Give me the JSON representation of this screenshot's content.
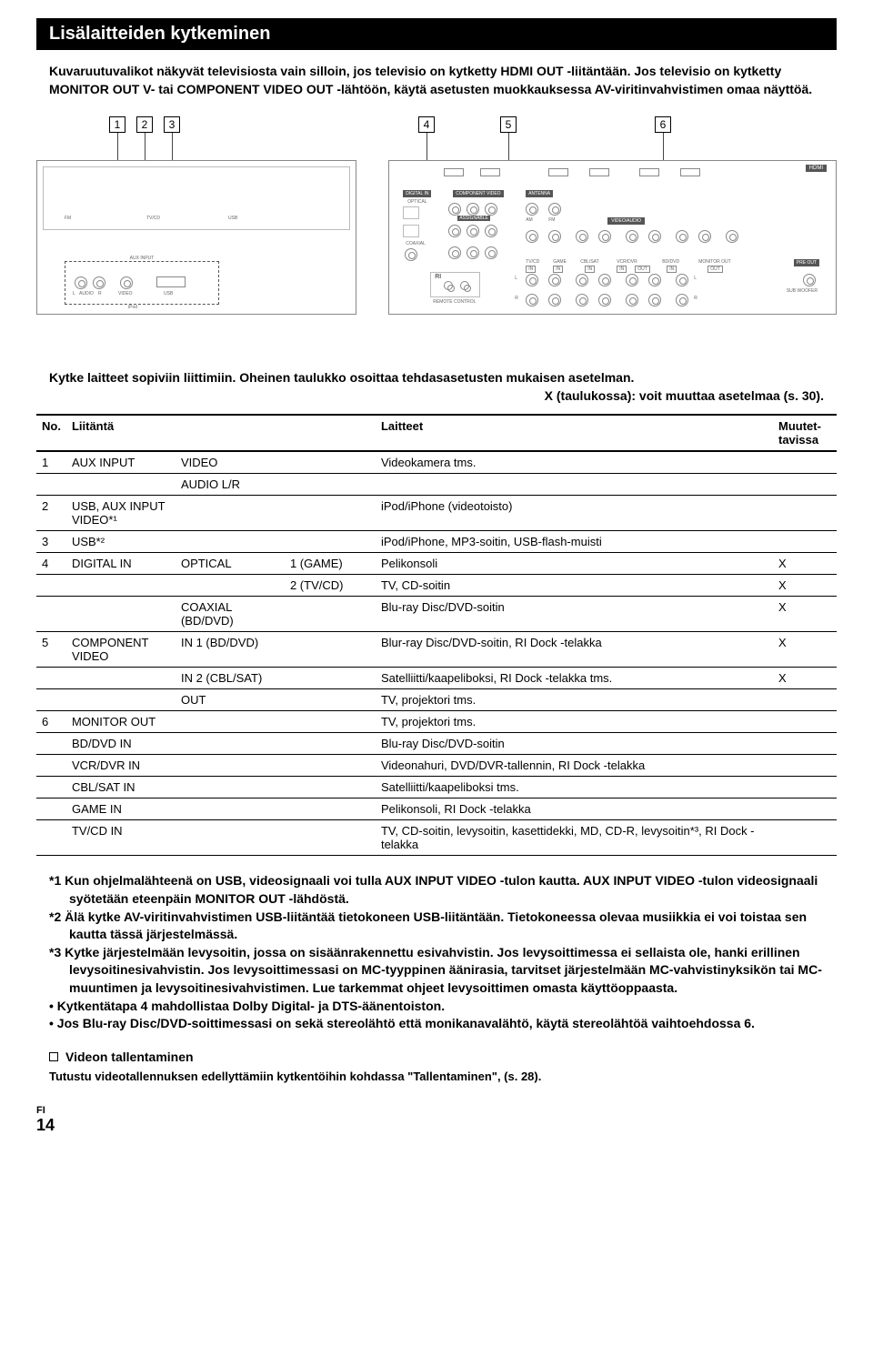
{
  "section_title": "Lisälaitteiden kytkeminen",
  "intro": "Kuvaruutuvalikot näkyvät televisiosta vain silloin, jos televisio on kytketty HDMI OUT -liitäntään. Jos televisio on kytketty MONITOR OUT V- tai COMPONENT VIDEO OUT -lähtöön, käytä asetusten muokkauksessa AV-viritinvahvistimen omaa näyttöä.",
  "callouts": [
    "1",
    "2",
    "3",
    "4",
    "5",
    "6"
  ],
  "diagram_labels": {
    "digital_in": "DIGITAL IN",
    "optical": "OPTICAL",
    "coaxial": "COAXIAL",
    "component_video": "COMPONENT VIDEO",
    "antenna": "ANTENNA",
    "video_audio": "VIDEO/AUDIO",
    "assignable": "ASSIGNABLE",
    "hdmi": "HDMI",
    "aux_input": "AUX INPUT",
    "audio_l": "L",
    "audio_r": "R",
    "audio": "AUDIO",
    "video": "VIDEO",
    "usb": "USB",
    "ipod": "iPod",
    "remote": "REMOTE CONTROL",
    "tvcd": "TV/CD",
    "game": "GAME",
    "cblsat": "CBL/SAT",
    "vcrdvr": "VCR/DVR",
    "bddvd": "BD/DVD",
    "monitor_out": "MONITOR OUT",
    "preout": "PRE OUT",
    "subwoofer": "SUB WOOFER",
    "in": "IN",
    "out": "OUT",
    "fm": "FM",
    "am": "AM",
    "ri": "RI"
  },
  "table_lead": {
    "line1": "Kytke laitteet sopiviin liittimiin. Oheinen taulukko osoittaa tehdasasetusten mukaisen asetelman.",
    "line2": "X (taulukossa): voit muuttaa asetelmaa (s. 30)."
  },
  "table": {
    "headers": {
      "no": "No.",
      "liitanta": "Liitäntä",
      "laitteet": "Laitteet",
      "muutet": "Muutet-tavissa"
    },
    "rows": [
      {
        "no": "1",
        "liit": "AUX INPUT",
        "sub1": "VIDEO",
        "sub2": "",
        "lait": "Videokamera tms.",
        "x": ""
      },
      {
        "no": "",
        "liit": "",
        "sub1": "AUDIO L/R",
        "sub2": "",
        "lait": "",
        "x": ""
      },
      {
        "no": "2",
        "liit": "USB, AUX INPUT VIDEO*¹",
        "sub1": "",
        "sub2": "",
        "lait": "iPod/iPhone (videotoisto)",
        "x": ""
      },
      {
        "no": "3",
        "liit": "USB*²",
        "sub1": "",
        "sub2": "",
        "lait": "iPod/iPhone, MP3-soitin, USB-flash-muisti",
        "x": ""
      },
      {
        "no": "4",
        "liit": "DIGITAL IN",
        "sub1": "OPTICAL",
        "sub2": "1 (GAME)",
        "lait": "Pelikonsoli",
        "x": "X"
      },
      {
        "no": "",
        "liit": "",
        "sub1": "",
        "sub2": "2 (TV/CD)",
        "lait": "TV, CD-soitin",
        "x": "X"
      },
      {
        "no": "",
        "liit": "",
        "sub1": "COAXIAL (BD/DVD)",
        "sub2": "",
        "lait": "Blu-ray Disc/DVD-soitin",
        "x": "X"
      },
      {
        "no": "5",
        "liit": "COMPONENT VIDEO",
        "sub1": "IN 1 (BD/DVD)",
        "sub2": "",
        "lait": "Blur-ray Disc/DVD-soitin, RI Dock -telakka",
        "x": "X"
      },
      {
        "no": "",
        "liit": "",
        "sub1": "IN 2 (CBL/SAT)",
        "sub2": "",
        "lait": "Satelliitti/kaapeliboksi, RI Dock -telakka tms.",
        "x": "X"
      },
      {
        "no": "",
        "liit": "",
        "sub1": "OUT",
        "sub2": "",
        "lait": "TV, projektori tms.",
        "x": ""
      },
      {
        "no": "6",
        "liit": "MONITOR OUT",
        "sub1": "",
        "sub2": "",
        "lait": "TV, projektori tms.",
        "x": ""
      },
      {
        "no": "",
        "liit": "BD/DVD IN",
        "sub1": "",
        "sub2": "",
        "lait": "Blu-ray Disc/DVD-soitin",
        "x": ""
      },
      {
        "no": "",
        "liit": "VCR/DVR IN",
        "sub1": "",
        "sub2": "",
        "lait": "Videonahuri, DVD/DVR-tallennin, RI Dock -telakka",
        "x": ""
      },
      {
        "no": "",
        "liit": "CBL/SAT IN",
        "sub1": "",
        "sub2": "",
        "lait": "Satelliitti/kaapeliboksi tms.",
        "x": ""
      },
      {
        "no": "",
        "liit": "GAME IN",
        "sub1": "",
        "sub2": "",
        "lait": "Pelikonsoli, RI Dock -telakka",
        "x": ""
      },
      {
        "no": "",
        "liit": "TV/CD IN",
        "sub1": "",
        "sub2": "",
        "lait": "TV, CD-soitin, levysoitin, kasettidekki, MD, CD-R, levysoitin*³, RI Dock -telakka",
        "x": ""
      }
    ]
  },
  "footnotes": [
    "*1 Kun ohjelmalähteenä on USB, videosignaali voi tulla AUX INPUT VIDEO -tulon kautta. AUX INPUT VIDEO -tulon videosignaali syötetään eteenpäin MONITOR OUT -lähdöstä.",
    "*2 Älä kytke AV-viritinvahvistimen USB-liitäntää tietokoneen USB-liitäntään. Tietokoneessa olevaa musiikkia ei voi toistaa sen kautta tässä järjestelmässä.",
    "*3 Kytke järjestelmään levysoitin, jossa on sisäänrakennettu esivahvistin. Jos levysoittimessa ei sellaista ole, hanki erillinen levysoitinesivahvistin. Jos levysoittimessasi on MC-tyyppinen äänirasia, tarvitset järjestelmään MC-vahvistinyksikön tai MC-muuntimen ja levysoitinesivahvistimen. Lue tarkemmat ohjeet levysoittimen omasta käyttöoppaasta.",
    "•  Kytkentätapa 4 mahdollistaa Dolby Digital- ja DTS-äänentoiston.",
    "•  Jos Blu-ray Disc/DVD-soittimessasi on sekä stereolähtö että monikanavalähtö, käytä stereolähtöä vaihtoehdossa 6."
  ],
  "sub_heading": "Videon tallentaminen",
  "sub_text": "Tutustu videotallennuksen edellyttämiin kytkentöihin kohdassa \"Tallentaminen\", (s. 28).",
  "footer": {
    "lang": "FI",
    "page": "14"
  }
}
